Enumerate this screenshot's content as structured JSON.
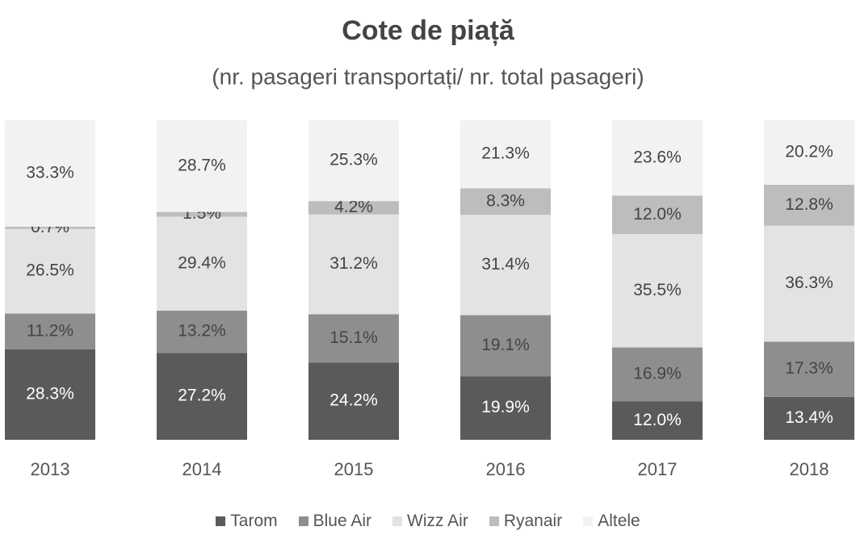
{
  "chart_data": {
    "type": "stacked_bar",
    "title": "Cote de piață",
    "subtitle": "(nr. pasageri transportați/ nr. total pasageri)",
    "categories": [
      "2013",
      "2014",
      "2015",
      "2016",
      "2017",
      "2018"
    ],
    "ylim": [
      0,
      100
    ],
    "series": [
      {
        "name": "Tarom",
        "color": "#5a5a5a",
        "values": [
          28.3,
          27.2,
          24.2,
          19.9,
          12.0,
          13.4
        ],
        "value_labels": [
          "28.3%",
          "27.2%",
          "24.2%",
          "19.9%",
          "12.0%",
          "13.4%"
        ]
      },
      {
        "name": "Blue Air",
        "color": "#8e8e8e",
        "values": [
          11.2,
          13.2,
          15.1,
          19.1,
          16.9,
          17.3
        ],
        "value_labels": [
          "11.2%",
          "13.2%",
          "15.1%",
          "19.1%",
          "16.9%",
          "17.3%"
        ]
      },
      {
        "name": "Wizz Air",
        "color": "#e3e3e3",
        "values": [
          26.5,
          29.4,
          31.2,
          31.4,
          35.5,
          36.3
        ],
        "value_labels": [
          "26.5%",
          "29.4%",
          "31.2%",
          "31.4%",
          "35.5%",
          "36.3%"
        ]
      },
      {
        "name": "Ryanair",
        "color": "#bdbdbd",
        "values": [
          0.7,
          1.5,
          4.2,
          8.3,
          12.0,
          12.8
        ],
        "value_labels": [
          "0.7%",
          "1.5%",
          "4.2%",
          "8.3%",
          "12.0%",
          "12.8%"
        ]
      },
      {
        "name": "Altele",
        "color": "#f2f2f2",
        "values": [
          33.3,
          28.7,
          25.3,
          21.3,
          23.6,
          20.2
        ],
        "value_labels": [
          "33.3%",
          "28.7%",
          "25.3%",
          "21.3%",
          "23.6%",
          "20.2%"
        ]
      }
    ]
  }
}
